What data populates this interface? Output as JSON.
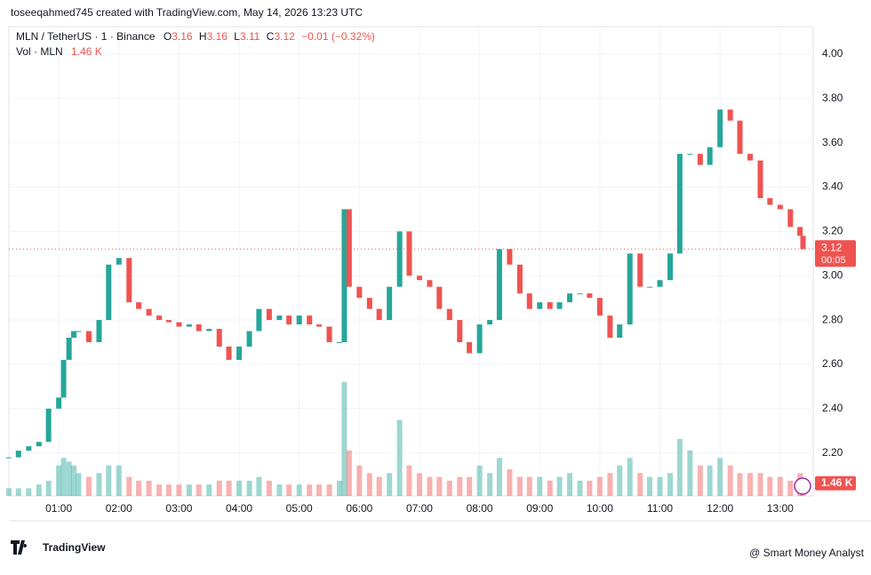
{
  "header": "toseeqahmed745 created with TradingView.com, May 14, 2026 13:23 UTC",
  "legend": {
    "symbol": "MLN / TetherUS · 1 · Binance",
    "o_key": "O",
    "o": "3.16",
    "h_key": "H",
    "h": "3.16",
    "l_key": "L",
    "l": "3.11",
    "c_key": "C",
    "c": "3.12",
    "change": "−0.01 (−0.32%)",
    "vol_label": "Vol · MLN",
    "vol": "1.46 K"
  },
  "countdown": "00:05",
  "footer": {
    "logo": "TradingView",
    "watermark": "@ Smart Money Analyst"
  },
  "chart_data": {
    "type": "candle",
    "x": [
      0.17,
      0.33,
      0.5,
      0.67,
      0.83,
      1,
      1.08,
      1.17,
      1.25,
      1.33,
      1.5,
      1.67,
      1.83,
      2,
      2.17,
      2.33,
      2.5,
      2.67,
      2.83,
      3,
      3.17,
      3.33,
      3.5,
      3.67,
      3.83,
      4,
      4.17,
      4.33,
      4.5,
      4.67,
      4.83,
      5,
      5.17,
      5.33,
      5.5,
      5.67,
      5.75,
      5.83,
      6,
      6.17,
      6.33,
      6.5,
      6.67,
      6.83,
      7,
      7.17,
      7.33,
      7.5,
      7.67,
      7.83,
      8,
      8.17,
      8.33,
      8.5,
      8.67,
      8.83,
      9,
      9.17,
      9.33,
      9.5,
      9.67,
      9.83,
      10,
      10.17,
      10.33,
      10.5,
      10.67,
      10.83,
      11,
      11.17,
      11.33,
      11.5,
      11.67,
      11.83,
      12,
      12.17,
      12.33,
      12.5,
      12.67,
      12.83,
      13,
      13.17,
      13.33,
      13.38
    ],
    "series": [
      {
        "name": "MLN / TetherUS",
        "up_color": "#26a69a",
        "down_color": "#ef5350",
        "values": [
          2.18,
          2.21,
          2.23,
          2.25,
          2.4,
          2.45,
          2.62,
          2.72,
          2.75,
          2.75,
          2.7,
          2.8,
          3.05,
          3.08,
          2.88,
          2.85,
          2.82,
          2.8,
          2.79,
          2.77,
          2.78,
          2.75,
          2.76,
          2.68,
          2.62,
          2.68,
          2.75,
          2.85,
          2.8,
          2.82,
          2.78,
          2.82,
          2.78,
          2.77,
          2.7,
          2.7,
          3.3,
          2.95,
          2.9,
          2.85,
          2.8,
          2.95,
          3.2,
          3.0,
          2.98,
          2.95,
          2.85,
          2.8,
          2.7,
          2.65,
          2.78,
          2.8,
          3.12,
          3.05,
          2.92,
          2.85,
          2.88,
          2.85,
          2.88,
          2.92,
          2.92,
          2.9,
          2.82,
          2.72,
          2.78,
          3.1,
          2.95,
          2.95,
          2.98,
          3.1,
          3.55,
          3.55,
          3.5,
          3.58,
          3.75,
          3.7,
          3.55,
          3.52,
          3.35,
          3.32,
          3.3,
          3.22,
          3.18,
          3.12
        ]
      },
      {
        "name": "Vol · MLN",
        "axis": "y2",
        "values": [
          2,
          2,
          2,
          3,
          4,
          8,
          10,
          9,
          8,
          6,
          5,
          6,
          8,
          8,
          5,
          4,
          4,
          3,
          3,
          3,
          3,
          3,
          3,
          4,
          4,
          4,
          4,
          5,
          4,
          3,
          3,
          3,
          3,
          3,
          3,
          4,
          30,
          12,
          8,
          6,
          5,
          6,
          20,
          8,
          6,
          5,
          5,
          4,
          5,
          5,
          8,
          6,
          10,
          7,
          5,
          5,
          5,
          4,
          5,
          6,
          4,
          4,
          5,
          6,
          8,
          10,
          6,
          5,
          5,
          6,
          15,
          12,
          8,
          8,
          10,
          8,
          6,
          6,
          6,
          5,
          5,
          4,
          6,
          1.46
        ]
      }
    ],
    "xlim": [
      0.17,
      13.55
    ],
    "xticks": [
      {
        "value": 1,
        "label": "01:00"
      },
      {
        "value": 2,
        "label": "02:00"
      },
      {
        "value": 3,
        "label": "03:00"
      },
      {
        "value": 4,
        "label": "04:00"
      },
      {
        "value": 5,
        "label": "05:00"
      },
      {
        "value": 6,
        "label": "06:00"
      },
      {
        "value": 7,
        "label": "07:00"
      },
      {
        "value": 8,
        "label": "08:00"
      },
      {
        "value": 9,
        "label": "09:00"
      },
      {
        "value": 10,
        "label": "10:00"
      },
      {
        "value": 11,
        "label": "11:00"
      },
      {
        "value": 12,
        "label": "12:00"
      },
      {
        "value": 13,
        "label": "13:00"
      }
    ],
    "ylim": [
      2.006,
      4.064
    ],
    "yticks": [
      {
        "value": 2.2,
        "label": "2.20"
      },
      {
        "value": 2.4,
        "label": "2.40"
      },
      {
        "value": 2.6,
        "label": "2.60"
      },
      {
        "value": 2.8,
        "label": "2.80"
      },
      {
        "value": 3,
        "label": "3.00"
      },
      {
        "value": 3.2,
        "label": "3.20"
      },
      {
        "value": 3.4,
        "label": "3.40"
      },
      {
        "value": 3.6,
        "label": "3.60"
      },
      {
        "value": 3.8,
        "label": "3.80"
      },
      {
        "value": 4,
        "label": "4.00"
      }
    ],
    "y2lim": [
      0,
      120
    ],
    "grid": true
  }
}
